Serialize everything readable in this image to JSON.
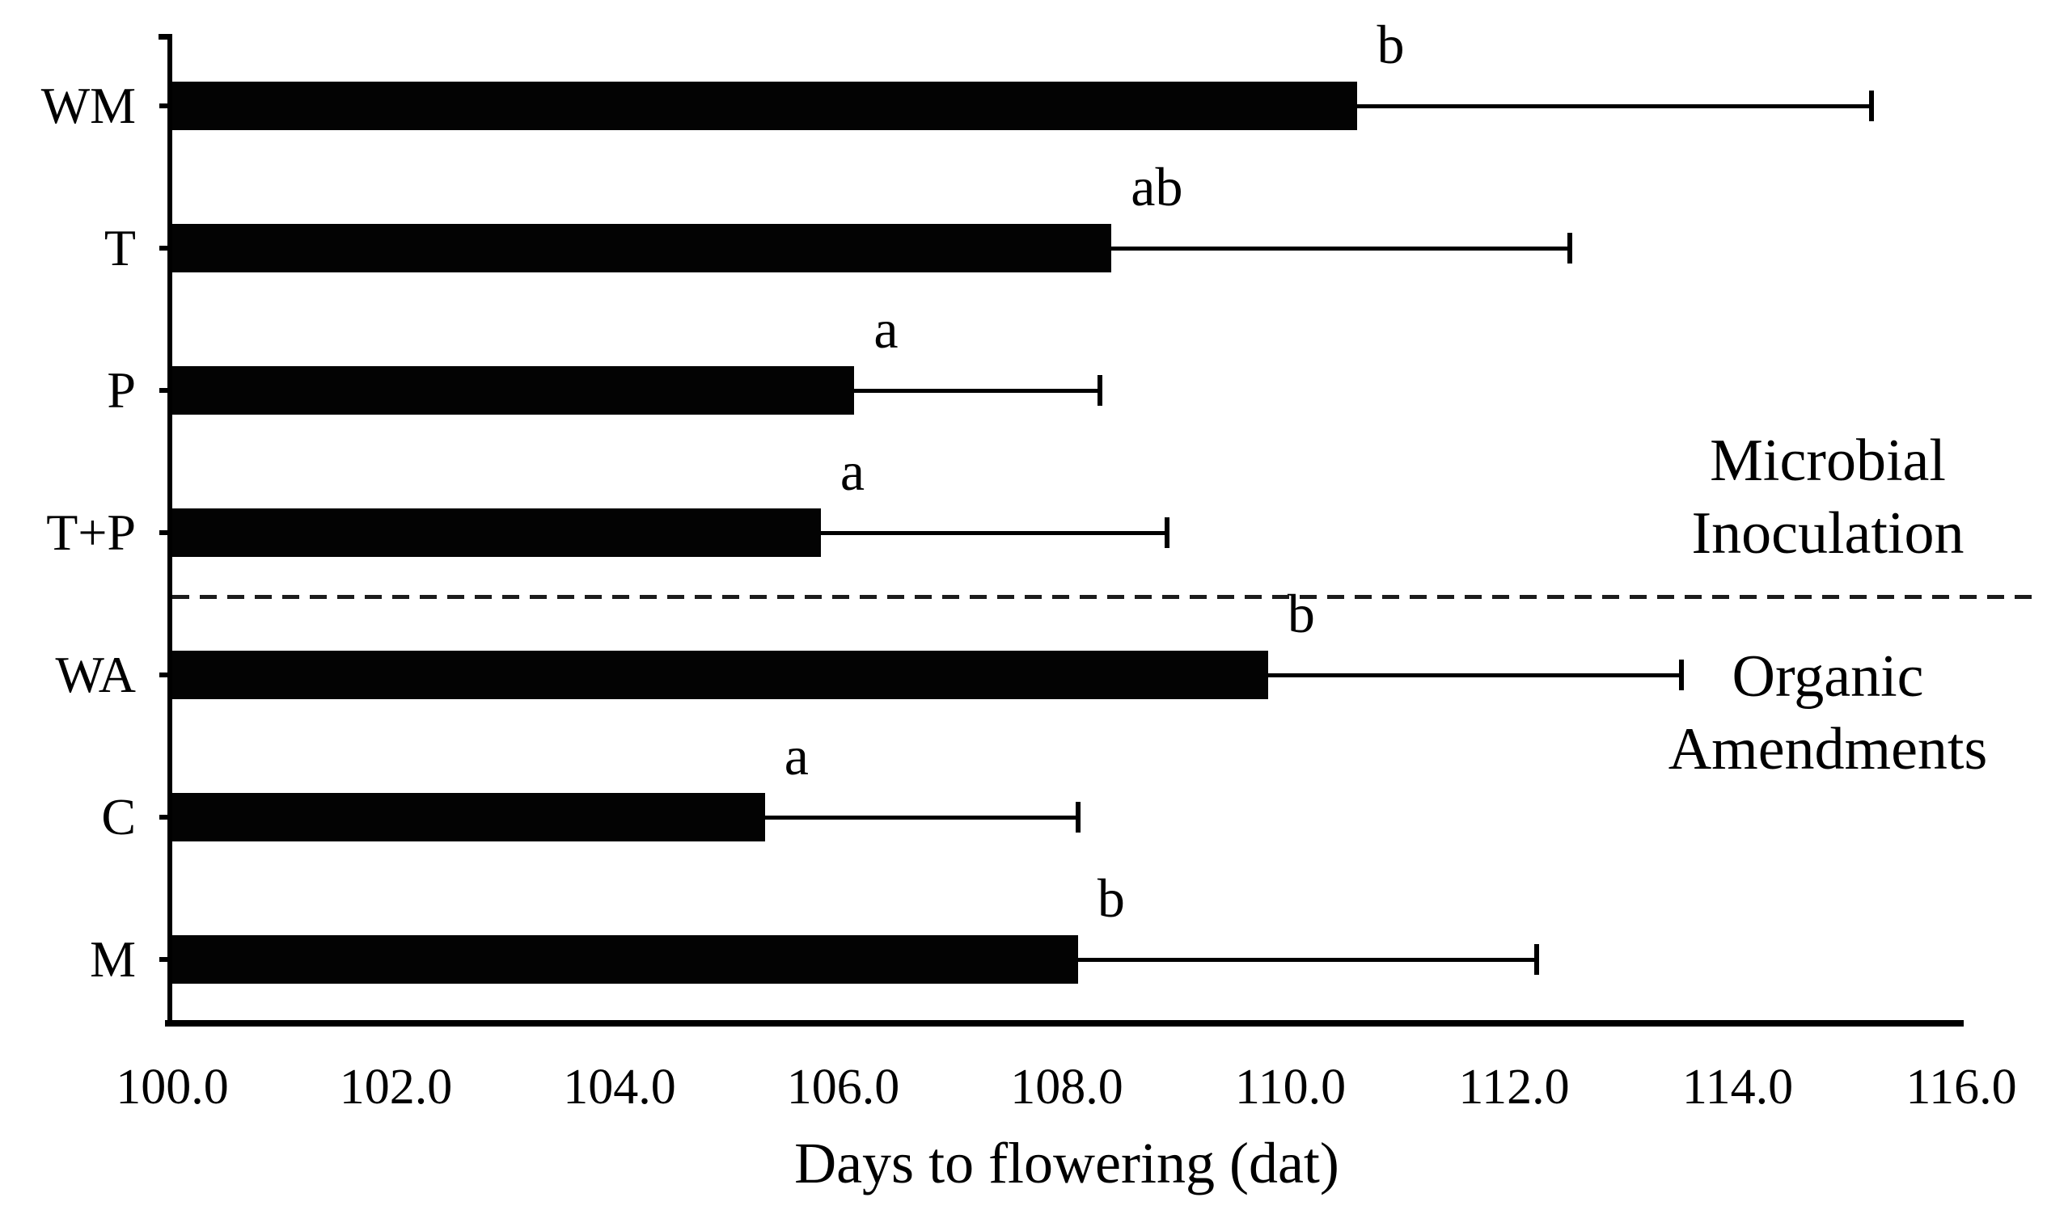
{
  "chart_data": {
    "type": "bar",
    "orientation": "horizontal",
    "xlabel": "Days to flowering (dat)",
    "xlim": [
      100.0,
      116.0
    ],
    "x_tick_step": 2.0,
    "x_ticks": [
      "100.0",
      "102.0",
      "104.0",
      "106.0",
      "108.0",
      "110.0",
      "112.0",
      "114.0",
      "116.0"
    ],
    "categories": [
      "WM",
      "T",
      "P",
      "T+P",
      "WA",
      "C",
      "M"
    ],
    "values": [
      110.6,
      108.4,
      106.1,
      105.8,
      109.8,
      105.3,
      108.1
    ],
    "error_upper": [
      4.6,
      4.1,
      2.2,
      3.1,
      3.7,
      2.8,
      4.1
    ],
    "sig_letters": [
      "b",
      "ab",
      "a",
      "a",
      "b",
      "a",
      "b"
    ],
    "bar_color": "#030303",
    "background_color": "#ffffff",
    "grid": "off",
    "error_bars": "upper only, capped",
    "groups": [
      {
        "name": "Microbial Inoculation",
        "lines": [
          "Microbial",
          "Inoculation"
        ],
        "categories": [
          "WM",
          "T",
          "P",
          "T+P"
        ]
      },
      {
        "name": "Organic Amendments",
        "lines": [
          "Organic",
          "Amendments"
        ],
        "categories": [
          "WA",
          "C",
          "M"
        ]
      }
    ],
    "separator": {
      "style": "dashed",
      "between": [
        "T+P",
        "WA"
      ]
    }
  }
}
